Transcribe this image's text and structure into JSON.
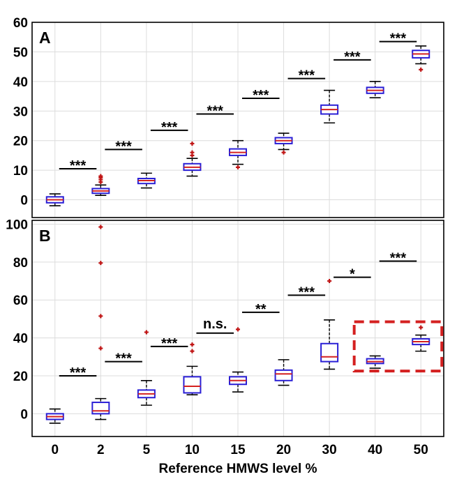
{
  "chart_data": {
    "type": "box",
    "xlabel": "Reference HMWS level %",
    "x_ticks": [
      "0",
      "2",
      "5",
      "10",
      "15",
      "20",
      "30",
      "40",
      "50"
    ],
    "colors": {
      "box": "#2a1fd6",
      "median": "#d42020",
      "outlier": "#c01515",
      "bracket": "#000000",
      "highlight": "#d42020",
      "grid": "#dcdcdc"
    },
    "panels": [
      {
        "label": "A",
        "ylim": [
          -6,
          60
        ],
        "yticks": [
          0,
          10,
          20,
          30,
          40,
          50,
          60
        ],
        "boxes": [
          {
            "x": "0",
            "whisker_low": -2,
            "q1": -1,
            "median": 0,
            "q3": 1,
            "whisker_high": 2,
            "outliers": []
          },
          {
            "x": "2",
            "whisker_low": 1.5,
            "q1": 2.2,
            "median": 3,
            "q3": 3.8,
            "whisker_high": 5,
            "outliers": [
              6,
              6.8,
              7.5,
              8
            ]
          },
          {
            "x": "5",
            "whisker_low": 4,
            "q1": 5.5,
            "median": 6.5,
            "q3": 7.2,
            "whisker_high": 9,
            "outliers": []
          },
          {
            "x": "10",
            "whisker_low": 8,
            "q1": 10,
            "median": 11,
            "q3": 12.2,
            "whisker_high": 14,
            "outliers": [
              15,
              16,
              19
            ]
          },
          {
            "x": "15",
            "whisker_low": 12,
            "q1": 15,
            "median": 16,
            "q3": 17.2,
            "whisker_high": 20,
            "outliers": [
              11
            ]
          },
          {
            "x": "20",
            "whisker_low": 17,
            "q1": 19,
            "median": 20,
            "q3": 21,
            "whisker_high": 22.5,
            "outliers": [
              16
            ]
          },
          {
            "x": "30",
            "whisker_low": 26,
            "q1": 29,
            "median": 30.5,
            "q3": 32,
            "whisker_high": 37,
            "outliers": []
          },
          {
            "x": "40",
            "whisker_low": 34.5,
            "q1": 36,
            "median": 37,
            "q3": 38,
            "whisker_high": 40,
            "outliers": []
          },
          {
            "x": "50",
            "whisker_low": 46,
            "q1": 48,
            "median": 49.3,
            "q3": 50.5,
            "whisker_high": 52,
            "outliers": [
              44
            ]
          }
        ],
        "brackets": [
          {
            "from": "0",
            "to": "2",
            "y": 10.5,
            "label": "***"
          },
          {
            "from": "2",
            "to": "5",
            "y": 17,
            "label": "***"
          },
          {
            "from": "5",
            "to": "10",
            "y": 23.5,
            "label": "***"
          },
          {
            "from": "10",
            "to": "15",
            "y": 29,
            "label": "***"
          },
          {
            "from": "15",
            "to": "20",
            "y": 34.3,
            "label": "***"
          },
          {
            "from": "20",
            "to": "30",
            "y": 41,
            "label": "***"
          },
          {
            "from": "30",
            "to": "40",
            "y": 47.3,
            "label": "***"
          },
          {
            "from": "40",
            "to": "50",
            "y": 53.5,
            "label": "***"
          }
        ]
      },
      {
        "label": "B",
        "ylim": [
          -12,
          102
        ],
        "yticks": [
          0,
          20,
          40,
          60,
          80,
          100
        ],
        "boxes": [
          {
            "x": "0",
            "whisker_low": -5,
            "q1": -3,
            "median": -1.5,
            "q3": 0,
            "whisker_high": 2.5,
            "outliers": []
          },
          {
            "x": "2",
            "whisker_low": -3,
            "q1": 0,
            "median": 1.5,
            "q3": 6,
            "whisker_high": 8,
            "outliers": [
              34.5,
              51.5,
              79.5,
              98.5
            ]
          },
          {
            "x": "5",
            "whisker_low": 4.5,
            "q1": 8.5,
            "median": 10.5,
            "q3": 12.5,
            "whisker_high": 17.5,
            "outliers": [
              43
            ]
          },
          {
            "x": "10",
            "whisker_low": 10,
            "q1": 11,
            "median": 14.5,
            "q3": 19.5,
            "whisker_high": 25,
            "outliers": [
              33,
              36.5
            ]
          },
          {
            "x": "15",
            "whisker_low": 11.5,
            "q1": 15.5,
            "median": 17.5,
            "q3": 19.5,
            "whisker_high": 22,
            "outliers": [
              44.5
            ]
          },
          {
            "x": "20",
            "whisker_low": 15,
            "q1": 17.5,
            "median": 21,
            "q3": 23,
            "whisker_high": 28.5,
            "outliers": []
          },
          {
            "x": "30",
            "whisker_low": 23.5,
            "q1": 27.5,
            "median": 30,
            "q3": 37,
            "whisker_high": 49.5,
            "outliers": [
              70
            ]
          },
          {
            "x": "40",
            "whisker_low": 24,
            "q1": 26.5,
            "median": 27.5,
            "q3": 29,
            "whisker_high": 30.5,
            "outliers": []
          },
          {
            "x": "50",
            "whisker_low": 33,
            "q1": 36.5,
            "median": 38,
            "q3": 39.5,
            "whisker_high": 41.5,
            "outliers": [
              45.5
            ]
          }
        ],
        "brackets": [
          {
            "from": "0",
            "to": "2",
            "y": 20,
            "label": "***"
          },
          {
            "from": "2",
            "to": "5",
            "y": 27.5,
            "label": "***"
          },
          {
            "from": "5",
            "to": "10",
            "y": 35.5,
            "label": "***"
          },
          {
            "from": "10",
            "to": "15",
            "y": 42.5,
            "label": "n.s."
          },
          {
            "from": "15",
            "to": "20",
            "y": 53.5,
            "label": "**"
          },
          {
            "from": "20",
            "to": "30",
            "y": 62.5,
            "label": "***"
          },
          {
            "from": "30",
            "to": "40",
            "y": 72,
            "label": "*"
          },
          {
            "from": "40",
            "to": "50",
            "y": 80.5,
            "label": "***"
          }
        ],
        "highlight": {
          "from": "40",
          "to": "50",
          "y_low": 22.5,
          "y_high": 48.5
        }
      }
    ]
  }
}
